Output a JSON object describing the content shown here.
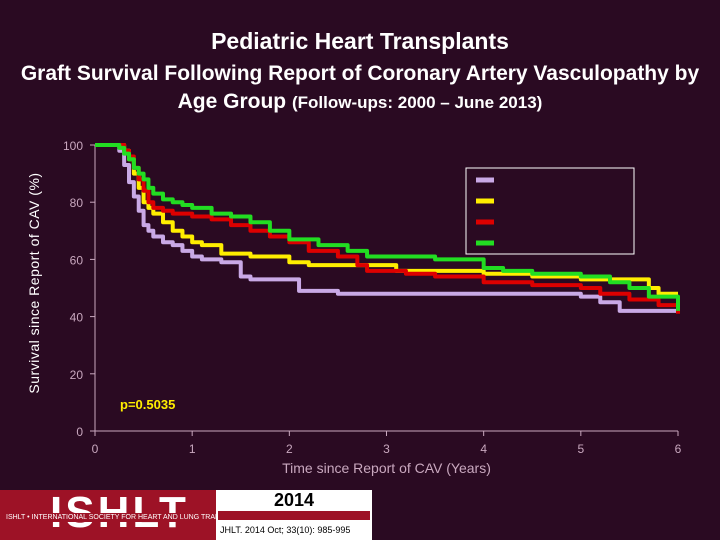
{
  "header": {
    "title": "Pediatric Heart Transplants",
    "subtitle_main": "Graft Survival Following Report of Coronary Artery Vasculopathy by Age Group",
    "subtitle_paren": "(Follow-ups: 2000 – June 2013)"
  },
  "footer": {
    "logo_text": "ISHLT",
    "society_text": "ISHLT • INTERNATIONAL SOCIETY FOR HEART AND LUNG TRANSPLANTATION",
    "year": "2014",
    "citation": "JHLT. 2014 Oct; 33(10): 985-995"
  },
  "colors": {
    "background": "#2a0a22",
    "axis": "#c9a8bf",
    "series_lavender": "#c9a9e6",
    "series_yellow": "#ffee00",
    "series_red": "#dd0000",
    "series_green": "#22dd22"
  },
  "chart_data": {
    "type": "line",
    "title": "Graft Survival Following Report of Coronary Artery Vasculopathy by Age Group",
    "xlabel": "Time since Report of CAV (Years)",
    "ylabel": "Survival since Report of CAV (%)",
    "xlim": [
      0,
      6
    ],
    "ylim": [
      0,
      100
    ],
    "xticks": [
      0,
      1,
      2,
      3,
      4,
      5,
      6
    ],
    "yticks": [
      0,
      20,
      40,
      60,
      80,
      100
    ],
    "grid": false,
    "legend_position": "top-right",
    "annotation": "p=0.5035",
    "series": [
      {
        "name": "",
        "color": "#c9a9e6",
        "x": [
          0,
          0.2,
          0.25,
          0.3,
          0.35,
          0.4,
          0.45,
          0.5,
          0.55,
          0.6,
          0.7,
          0.8,
          0.9,
          1.0,
          1.1,
          1.3,
          1.5,
          1.6,
          2.0,
          2.1,
          2.4,
          2.5,
          3.0,
          4.0,
          4.5,
          4.9,
          5.0,
          5.2,
          5.4,
          5.6,
          6.0
        ],
        "y": [
          100,
          100,
          98,
          93,
          87,
          82,
          77,
          72,
          70,
          68,
          66,
          65,
          63,
          61,
          60,
          59,
          54,
          53,
          53,
          49,
          49,
          48,
          48,
          48,
          48,
          48,
          47,
          45,
          42,
          42,
          42
        ]
      },
      {
        "name": "",
        "color": "#ffee00",
        "x": [
          0,
          0.2,
          0.3,
          0.35,
          0.4,
          0.45,
          0.5,
          0.55,
          0.6,
          0.7,
          0.8,
          0.9,
          1.0,
          1.1,
          1.3,
          1.6,
          1.8,
          2.0,
          2.2,
          2.5,
          3.0,
          3.1,
          4.0,
          4.5,
          5.0,
          5.5,
          5.6,
          5.7,
          5.8,
          6.0
        ],
        "y": [
          100,
          100,
          98,
          95,
          90,
          85,
          80,
          78,
          76,
          73,
          70,
          68,
          66,
          65,
          62,
          61,
          61,
          59,
          58,
          58,
          58,
          56,
          55,
          54,
          53,
          53,
          53,
          50,
          48,
          48
        ]
      },
      {
        "name": "",
        "color": "#dd0000",
        "x": [
          0,
          0.25,
          0.3,
          0.35,
          0.4,
          0.45,
          0.5,
          0.55,
          0.6,
          0.7,
          0.8,
          0.9,
          1.0,
          1.2,
          1.4,
          1.6,
          1.8,
          2.0,
          2.2,
          2.5,
          2.7,
          2.8,
          3.0,
          3.2,
          3.5,
          4.0,
          4.5,
          5.0,
          5.2,
          5.5,
          5.8,
          6.0
        ],
        "y": [
          100,
          100,
          98,
          96,
          92,
          88,
          84,
          80,
          78,
          77,
          76,
          76,
          75,
          74,
          72,
          70,
          68,
          66,
          63,
          61,
          58,
          56,
          56,
          55,
          54,
          52,
          51,
          50,
          48,
          46,
          44,
          41
        ]
      },
      {
        "name": "",
        "color": "#22dd22",
        "x": [
          0,
          0.2,
          0.25,
          0.3,
          0.35,
          0.4,
          0.45,
          0.5,
          0.55,
          0.6,
          0.7,
          0.8,
          0.9,
          1.0,
          1.2,
          1.4,
          1.6,
          1.8,
          2.0,
          2.3,
          2.6,
          2.8,
          3.0,
          3.5,
          4.0,
          4.2,
          4.5,
          5.0,
          5.3,
          5.5,
          5.7,
          6.0
        ],
        "y": [
          100,
          100,
          99,
          97,
          95,
          92,
          90,
          88,
          85,
          83,
          81,
          80,
          79,
          78,
          76,
          75,
          73,
          70,
          67,
          65,
          63,
          61,
          61,
          60,
          57,
          56,
          55,
          54,
          52,
          50,
          47,
          42
        ]
      }
    ]
  }
}
